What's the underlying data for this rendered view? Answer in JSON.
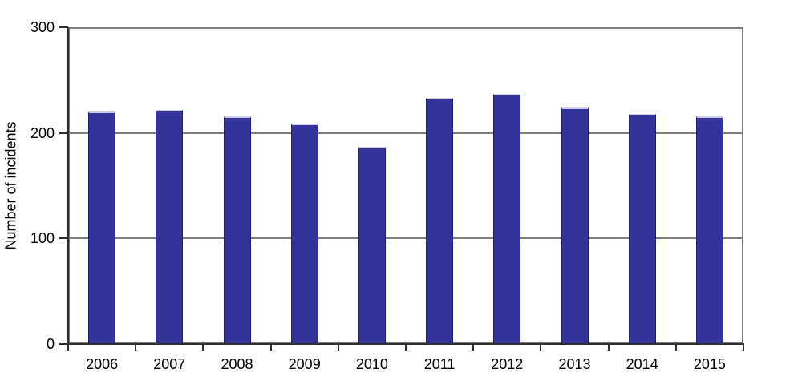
{
  "chart_data": {
    "type": "bar",
    "title": "",
    "xlabel": "",
    "ylabel": "Number of incidents",
    "categories": [
      "2006",
      "2007",
      "2008",
      "2009",
      "2010",
      "2011",
      "2012",
      "2013",
      "2014",
      "2015"
    ],
    "values": [
      220,
      222,
      216,
      209,
      187,
      233,
      237,
      224,
      218,
      216
    ],
    "series": [
      {
        "name": "Number of incidents",
        "values": [
          220,
          222,
          216,
          209,
          187,
          233,
          237,
          224,
          218,
          216
        ]
      }
    ],
    "ylim": [
      0,
      300
    ],
    "yticks": [
      0,
      100,
      200,
      300
    ],
    "gridlines_at": [
      100,
      200
    ],
    "grid": "horizontal",
    "legend": "none"
  },
  "colors": {
    "background": "#ffffff",
    "bar_fill": "#333399",
    "bar_edge_dark": "#1e1e7d",
    "bar_edge_light": "#cfcfec",
    "gridline": "#7e7e7e",
    "frame": "#7e7e7e",
    "axis": "#2f2f2f",
    "text": "#000000"
  }
}
